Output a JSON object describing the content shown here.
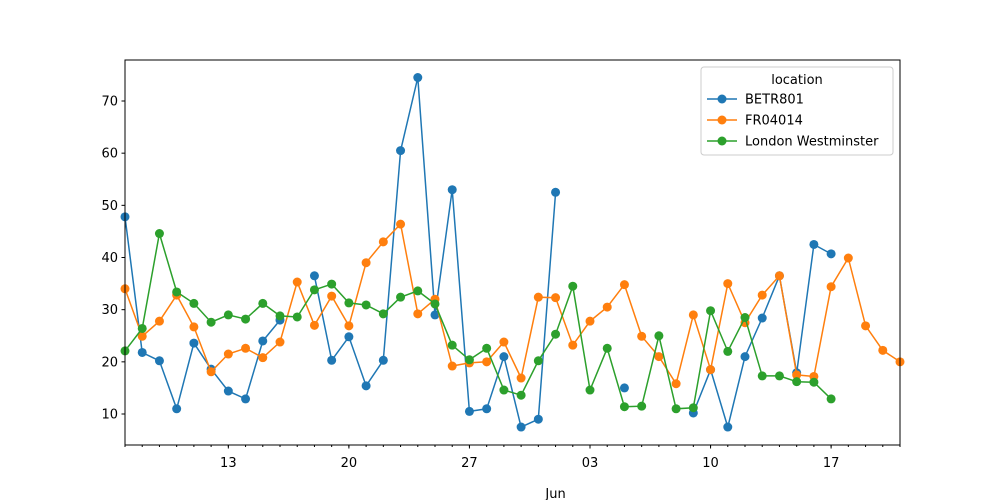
{
  "chart_data": {
    "type": "line",
    "x_start": "2019-05-07",
    "x_end": "2019-06-21",
    "x_frequency": "daily",
    "xlabel": "",
    "ylabel": "",
    "ylim": [
      4.06,
      77.86
    ],
    "yticks": [
      10,
      20,
      30,
      40,
      50,
      60,
      70
    ],
    "xticks": [
      {
        "date": "2019-05-13",
        "label": "13"
      },
      {
        "date": "2019-05-20",
        "label": "20"
      },
      {
        "date": "2019-05-27",
        "label": "27"
      },
      {
        "date": "2019-06-03",
        "label": "03"
      },
      {
        "date": "2019-06-10",
        "label": "10"
      },
      {
        "date": "2019-06-17",
        "label": "17"
      }
    ],
    "month_label": {
      "date": "2019-06-01",
      "label": "Jun"
    },
    "grid": false,
    "legend": {
      "title": "location",
      "placement": "top-right"
    },
    "series": [
      {
        "name": "BETR801",
        "color": "#1f77b4",
        "marker": "circle",
        "values": [
          47.8,
          21.8,
          20.2,
          11.0,
          23.6,
          18.6,
          14.4,
          12.9,
          24.0,
          28.0,
          null,
          36.5,
          20.3,
          24.8,
          15.4,
          20.3,
          60.5,
          74.5,
          29.0,
          53.0,
          10.5,
          11.0,
          21.0,
          7.5,
          9.0,
          52.5,
          null,
          null,
          null,
          15.0,
          null,
          null,
          null,
          10.2,
          18.5,
          7.5,
          21.0,
          28.4,
          36.5,
          17.9,
          42.5,
          40.7,
          null,
          null,
          null,
          null
        ]
      },
      {
        "name": "FR04014",
        "color": "#ff7f0e",
        "marker": "circle",
        "values": [
          34.0,
          24.9,
          27.8,
          32.8,
          26.7,
          18.1,
          21.5,
          22.6,
          20.8,
          23.8,
          35.3,
          27.0,
          32.6,
          26.9,
          39.0,
          43.0,
          46.4,
          29.2,
          32.0,
          19.2,
          19.8,
          20.0,
          23.8,
          16.9,
          32.4,
          32.3,
          23.2,
          27.8,
          30.5,
          34.8,
          24.9,
          21.0,
          15.8,
          29.0,
          18.5,
          35.0,
          27.5,
          32.8,
          36.5,
          17.5,
          17.2,
          34.4,
          39.9,
          26.9,
          22.2,
          20.0
        ]
      },
      {
        "name": "London Westminster",
        "color": "#2ca02c",
        "marker": "circle",
        "values": [
          22.1,
          26.4,
          44.6,
          33.4,
          31.2,
          27.6,
          29.0,
          28.2,
          31.2,
          28.8,
          28.6,
          33.8,
          34.9,
          31.3,
          30.9,
          29.2,
          32.4,
          33.6,
          31.1,
          23.2,
          20.4,
          22.6,
          14.6,
          13.6,
          20.2,
          25.3,
          34.5,
          14.6,
          22.6,
          11.4,
          11.5,
          25.0,
          11.0,
          11.2,
          29.8,
          22.0,
          28.5,
          17.3,
          17.3,
          16.2,
          16.1,
          12.9,
          null,
          null,
          null,
          null
        ]
      }
    ]
  }
}
